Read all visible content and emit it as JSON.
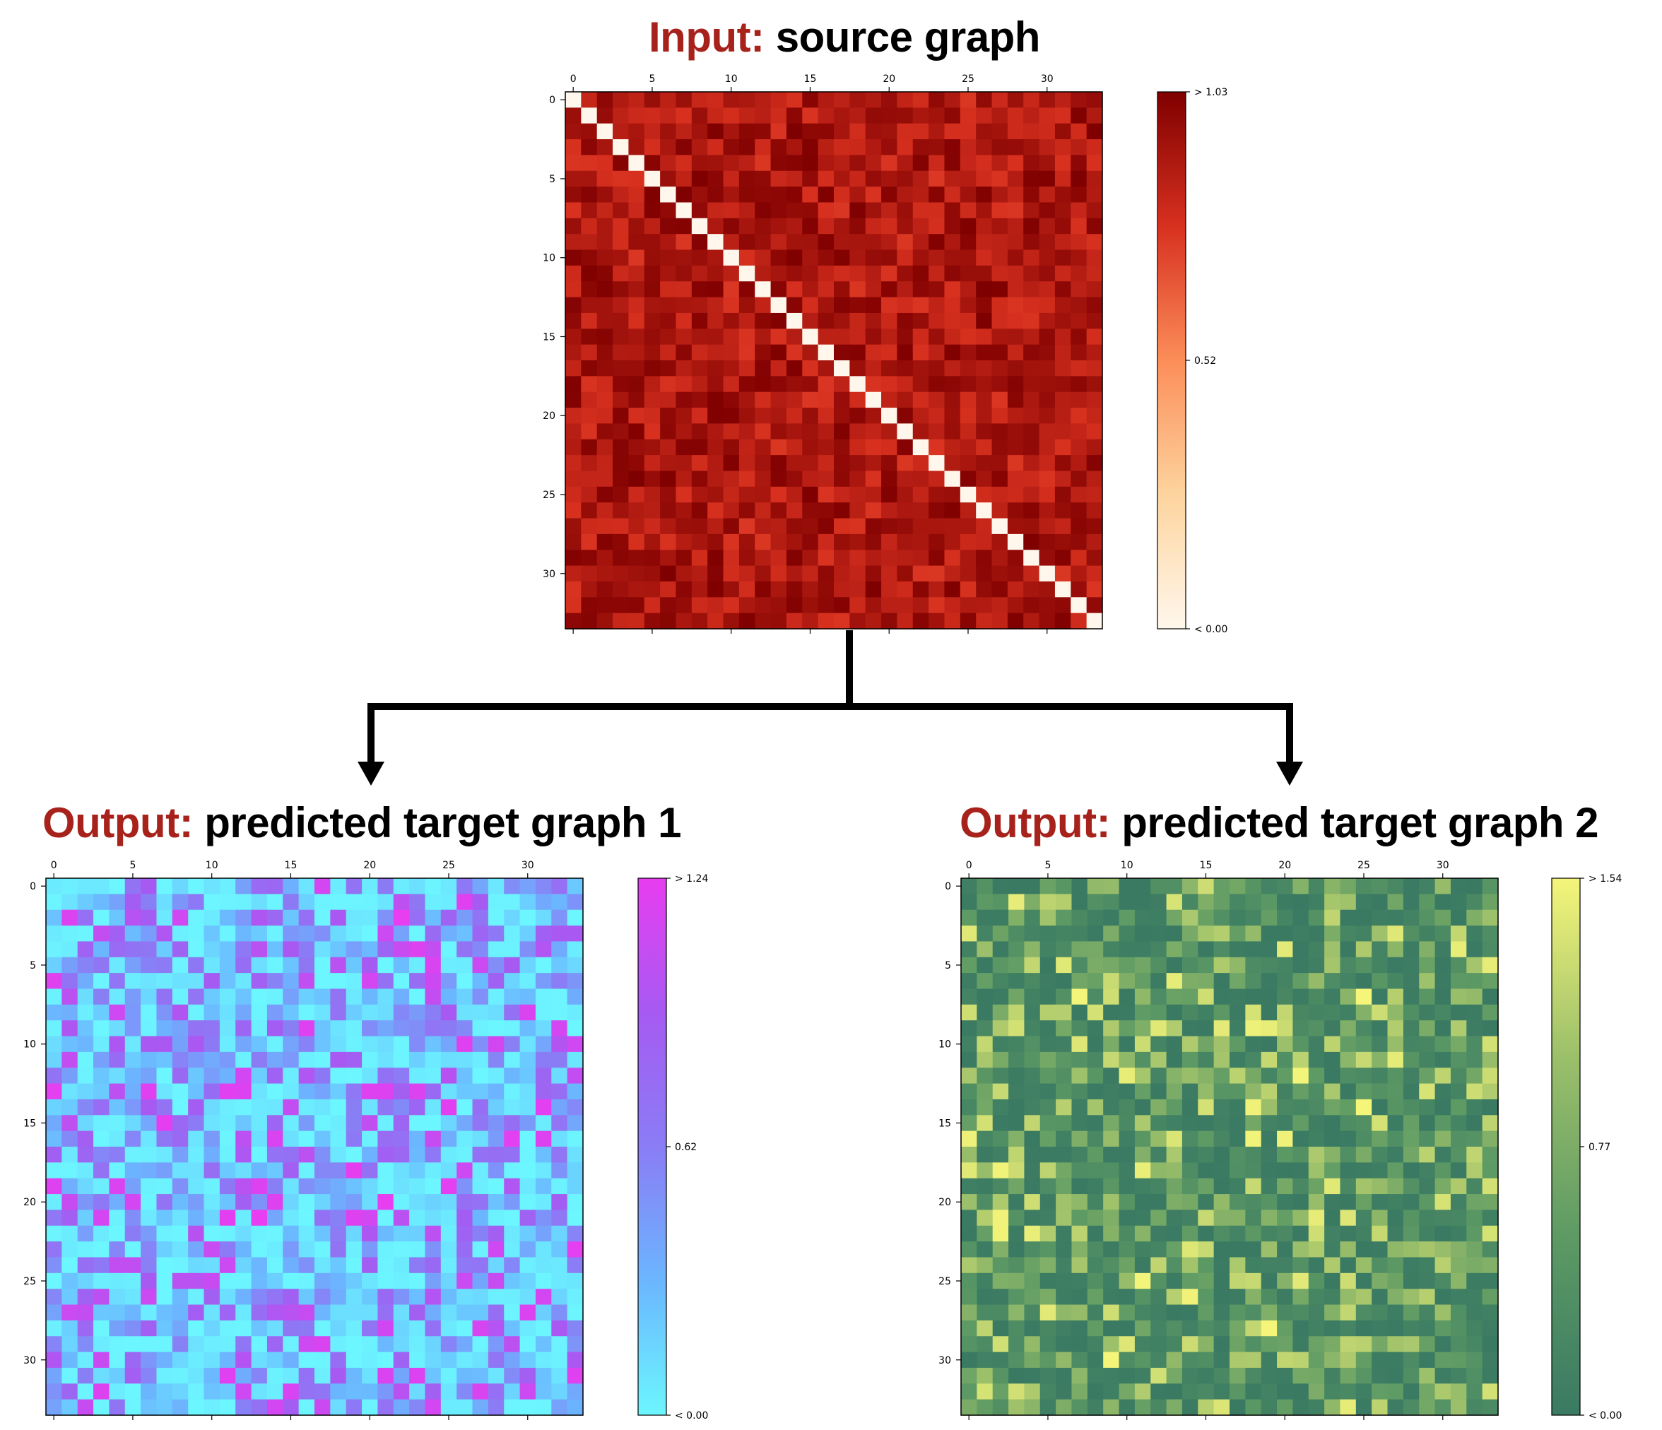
{
  "panels": [
    {
      "title_prefix": "Input:",
      "title_text": "source graph",
      "matrix_size": 34,
      "x_ticks": [
        "0",
        "5",
        "10",
        "15",
        "20",
        "25",
        "30"
      ],
      "y_ticks": [
        "0",
        "5",
        "10",
        "15",
        "20",
        "25",
        "30"
      ],
      "colorbar": {
        "max_label": "> 1.03",
        "mid_label": "0.52",
        "min_label": "< 0.00",
        "vmax": 1.03
      },
      "colormap": [
        "#fff7ec",
        "#fdd49e",
        "#fc8d59",
        "#d7301f",
        "#7f0000"
      ],
      "diagonal_zero": true,
      "value_range": [
        0.6,
        1.03
      ],
      "seed": 17
    },
    {
      "title_prefix": "Output:",
      "title_text": "predicted target graph 1",
      "matrix_size": 34,
      "x_ticks": [
        "0",
        "5",
        "10",
        "15",
        "20",
        "25",
        "30"
      ],
      "y_ticks": [
        "0",
        "5",
        "10",
        "15",
        "20",
        "25",
        "30"
      ],
      "colorbar": {
        "max_label": "> 1.24",
        "mid_label": "0.62",
        "min_label": "< 0.00",
        "vmax": 1.24
      },
      "colormap": [
        "#6cf6ff",
        "#6bb6ff",
        "#8a7df5",
        "#a65af2",
        "#e83df0"
      ],
      "diagonal_zero": false,
      "value_range": [
        0.0,
        1.24
      ],
      "seed": 43
    },
    {
      "title_prefix": "Output:",
      "title_text": "predicted target graph 2",
      "matrix_size": 34,
      "x_ticks": [
        "0",
        "5",
        "10",
        "15",
        "20",
        "25",
        "30"
      ],
      "y_ticks": [
        "0",
        "5",
        "10",
        "15",
        "20",
        "25",
        "30"
      ],
      "colorbar": {
        "max_label": "> 1.54",
        "mid_label": "0.77",
        "min_label": "< 0.00",
        "vmax": 1.54
      },
      "colormap": [
        "#3a7a63",
        "#5d9a64",
        "#9bbf6a",
        "#f5f57a"
      ],
      "diagonal_zero": false,
      "value_range": [
        0.0,
        1.54
      ],
      "seed": 91
    }
  ]
}
